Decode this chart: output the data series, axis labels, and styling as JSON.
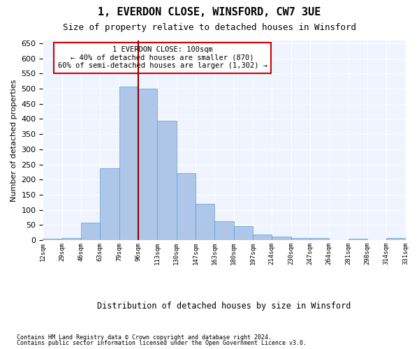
{
  "title": "1, EVERDON CLOSE, WINSFORD, CW7 3UE",
  "subtitle": "Size of property relative to detached houses in Winsford",
  "xlabel": "Distribution of detached houses by size in Winsford",
  "ylabel": "Number of detached properties",
  "bar_color": "#aec6e8",
  "bar_edge_color": "#5a9fd4",
  "bar_values": [
    5,
    8,
    58,
    238,
    508,
    500,
    395,
    222,
    120,
    62,
    47,
    20,
    12,
    8,
    7,
    0,
    5,
    0,
    7
  ],
  "bin_labels": [
    "12sqm",
    "29sqm",
    "46sqm",
    "63sqm",
    "79sqm",
    "96sqm",
    "113sqm",
    "130sqm",
    "147sqm",
    "163sqm",
    "180sqm",
    "197sqm",
    "214sqm",
    "230sqm",
    "247sqm",
    "264sqm",
    "281sqm",
    "298sqm",
    "314sqm",
    "331sqm"
  ],
  "vline_x": 5,
  "vline_color": "#8b0000",
  "ylim": [
    0,
    660
  ],
  "yticks": [
    0,
    50,
    100,
    150,
    200,
    250,
    300,
    350,
    400,
    450,
    500,
    550,
    600,
    650
  ],
  "annotation_text": "1 EVERDON CLOSE: 100sqm\n← 40% of detached houses are smaller (870)\n60% of semi-detached houses are larger (1,302) →",
  "annotation_box_color": "#ffffff",
  "annotation_border_color": "#cc0000",
  "bg_color": "#f0f4ff",
  "grid_color": "#ffffff",
  "footnote1": "Contains HM Land Registry data © Crown copyright and database right 2024.",
  "footnote2": "Contains public sector information licensed under the Open Government Licence v3.0."
}
